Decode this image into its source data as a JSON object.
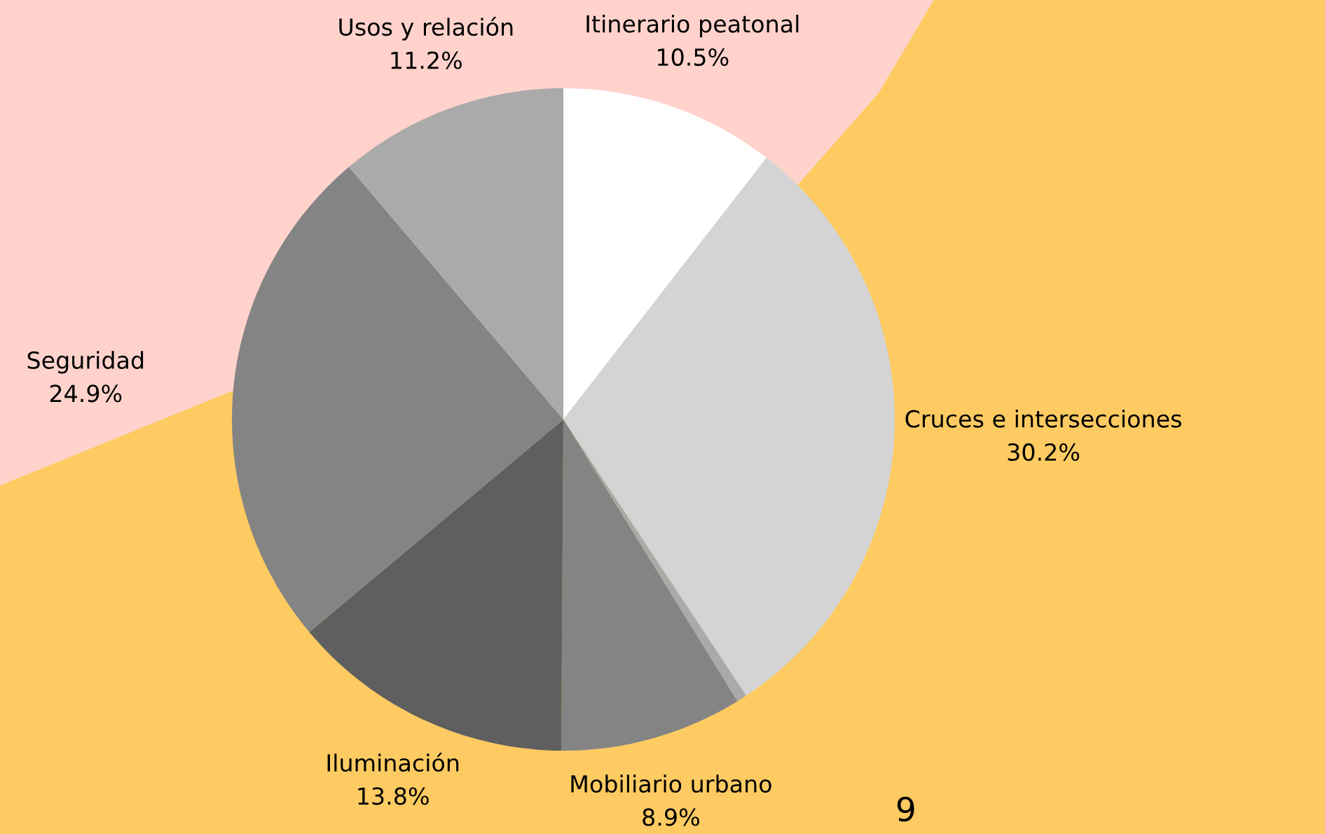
{
  "chart_data": {
    "type": "pie",
    "categories": [
      "Itinerario peatonal",
      "Cruces e intersecciones",
      null,
      "Mobiliario urbano",
      "Iluminación",
      "Seguridad",
      "Usos y relación"
    ],
    "values": [
      10.5,
      30.2,
      0.5,
      8.9,
      13.8,
      24.9,
      11.2
    ],
    "colors": [
      "#ffffff",
      "#d4d4d4",
      "#aaaaaa",
      "#848484",
      "#5f5f5f",
      "#848484",
      "#aaaaaa"
    ],
    "value_labels": [
      "10.5%",
      "30.2%",
      null,
      "8.9%",
      "13.8%",
      "24.9%",
      "11.2%"
    ],
    "annotations": [
      "9"
    ]
  }
}
